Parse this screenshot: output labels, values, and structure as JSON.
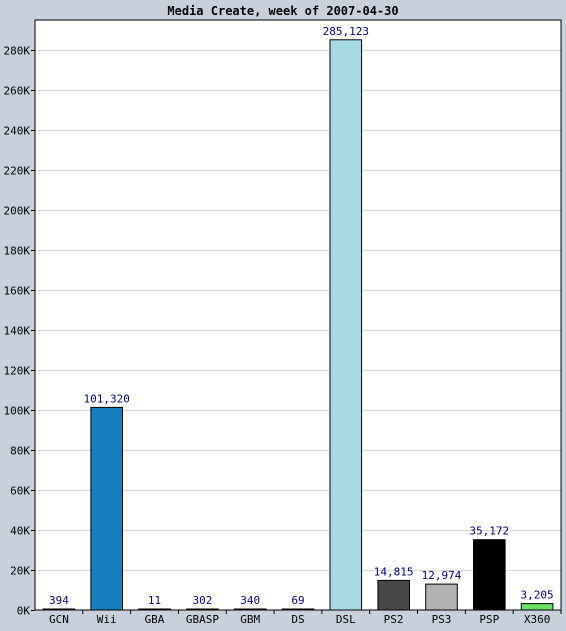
{
  "chart_data": {
    "type": "bar",
    "title": "Media Create, week of 2007-04-30",
    "xlabel": "",
    "ylabel": "",
    "ylim": [
      0,
      295000
    ],
    "yticks": [
      0,
      20000,
      40000,
      60000,
      80000,
      100000,
      120000,
      140000,
      160000,
      180000,
      200000,
      220000,
      240000,
      260000,
      280000
    ],
    "ytick_labels": [
      "0K",
      "20K",
      "40K",
      "60K",
      "80K",
      "100K",
      "120K",
      "140K",
      "160K",
      "180K",
      "200K",
      "220K",
      "240K",
      "260K",
      "280K"
    ],
    "grid": true,
    "legend": "none",
    "categories": [
      "GCN",
      "Wii",
      "GBA",
      "GBASP",
      "GBM",
      "DS",
      "DSL",
      "PS2",
      "PS3",
      "PSP",
      "X360"
    ],
    "values": [
      394,
      101320,
      11,
      302,
      340,
      69,
      285123,
      14815,
      12974,
      35172,
      3205
    ],
    "value_labels": [
      "394",
      "101,320",
      "11",
      "302",
      "340",
      "69",
      "285,123",
      "14,815",
      "12,974",
      "35,172",
      "3,205"
    ],
    "colors": [
      "#6a5acd",
      "#1580c0",
      "#cccccc",
      "#cccccc",
      "#cccccc",
      "#cccccc",
      "#a8dae6",
      "#484848",
      "#b2b2b2",
      "#000000",
      "#66e066"
    ],
    "colors_note_unused": ""
  }
}
